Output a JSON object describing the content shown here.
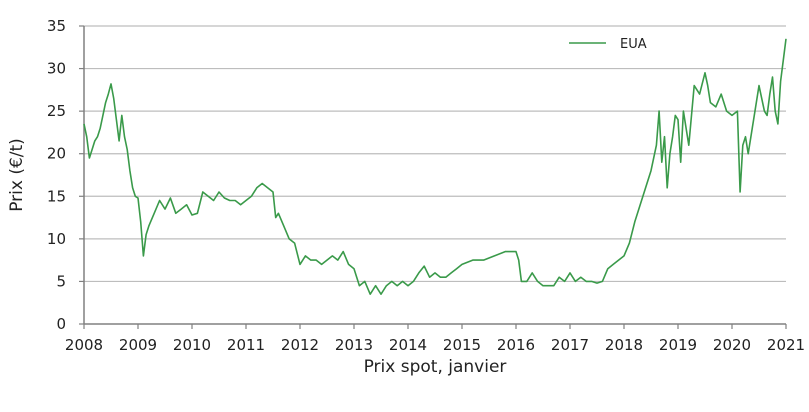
{
  "chart_data": {
    "type": "line",
    "title": "",
    "xlabel": "Prix spot, janvier",
    "ylabel": "Prix (€/t)",
    "ylim": [
      0,
      35
    ],
    "xlim": [
      2008,
      2021
    ],
    "yticks": [
      0,
      5,
      10,
      15,
      20,
      25,
      30,
      35
    ],
    "xticks": [
      2008,
      2009,
      2010,
      2011,
      2012,
      2013,
      2014,
      2015,
      2016,
      2017,
      2018,
      2019,
      2020,
      2021
    ],
    "grid": "horizontal",
    "legend_position": "top-right",
    "series": [
      {
        "name": "EUA",
        "color": "#3a9a4a",
        "x": [
          2008.0,
          2008.05,
          2008.1,
          2008.15,
          2008.2,
          2008.25,
          2008.3,
          2008.35,
          2008.4,
          2008.45,
          2008.5,
          2008.55,
          2008.6,
          2008.65,
          2008.7,
          2008.75,
          2008.8,
          2008.85,
          2008.9,
          2008.95,
          2009.0,
          2009.05,
          2009.1,
          2009.15,
          2009.2,
          2009.3,
          2009.4,
          2009.5,
          2009.6,
          2009.7,
          2009.8,
          2009.9,
          2010.0,
          2010.1,
          2010.2,
          2010.3,
          2010.4,
          2010.5,
          2010.6,
          2010.7,
          2010.8,
          2010.9,
          2011.0,
          2011.1,
          2011.2,
          2011.3,
          2011.4,
          2011.5,
          2011.55,
          2011.6,
          2011.7,
          2011.8,
          2011.9,
          2012.0,
          2012.1,
          2012.2,
          2012.3,
          2012.4,
          2012.5,
          2012.6,
          2012.7,
          2012.8,
          2012.9,
          2013.0,
          2013.1,
          2013.2,
          2013.3,
          2013.4,
          2013.5,
          2013.6,
          2013.7,
          2013.8,
          2013.9,
          2014.0,
          2014.1,
          2014.2,
          2014.3,
          2014.4,
          2014.5,
          2014.6,
          2014.7,
          2014.8,
          2014.9,
          2015.0,
          2015.2,
          2015.4,
          2015.6,
          2015.8,
          2016.0,
          2016.05,
          2016.1,
          2016.2,
          2016.3,
          2016.4,
          2016.5,
          2016.6,
          2016.7,
          2016.8,
          2016.9,
          2017.0,
          2017.1,
          2017.2,
          2017.3,
          2017.4,
          2017.5,
          2017.6,
          2017.7,
          2017.8,
          2017.9,
          2018.0,
          2018.1,
          2018.2,
          2018.3,
          2018.4,
          2018.5,
          2018.6,
          2018.65,
          2018.7,
          2018.75,
          2018.8,
          2018.85,
          2018.9,
          2018.95,
          2019.0,
          2019.05,
          2019.1,
          2019.15,
          2019.2,
          2019.3,
          2019.4,
          2019.5,
          2019.55,
          2019.6,
          2019.7,
          2019.8,
          2019.9,
          2020.0,
          2020.1,
          2020.15,
          2020.2,
          2020.25,
          2020.3,
          2020.4,
          2020.5,
          2020.6,
          2020.65,
          2020.7,
          2020.75,
          2020.8,
          2020.85,
          2020.9,
          2020.95,
          2021.0
        ],
        "values": [
          23.5,
          22.0,
          19.5,
          20.5,
          21.5,
          22.0,
          23.0,
          24.5,
          26.0,
          27.0,
          28.2,
          26.5,
          24.0,
          21.5,
          24.5,
          22.0,
          20.5,
          18.0,
          16.0,
          15.0,
          14.8,
          12.0,
          8.0,
          10.5,
          11.5,
          13.0,
          14.5,
          13.5,
          14.8,
          13.0,
          13.5,
          14.0,
          12.8,
          13.0,
          15.5,
          15.0,
          14.5,
          15.5,
          14.8,
          14.5,
          14.5,
          14.0,
          14.5,
          15.0,
          16.0,
          16.5,
          16.0,
          15.5,
          12.5,
          13.0,
          11.5,
          10.0,
          9.5,
          7.0,
          8.0,
          7.5,
          7.5,
          7.0,
          7.5,
          8.0,
          7.5,
          8.5,
          7.0,
          6.5,
          4.5,
          5.0,
          3.5,
          4.5,
          3.5,
          4.5,
          5.0,
          4.5,
          5.0,
          4.5,
          5.0,
          6.0,
          6.8,
          5.5,
          6.0,
          5.5,
          5.5,
          6.0,
          6.5,
          7.0,
          7.5,
          7.5,
          8.0,
          8.5,
          8.5,
          7.5,
          5.0,
          5.0,
          6.0,
          5.0,
          4.5,
          4.5,
          4.5,
          5.5,
          5.0,
          6.0,
          5.0,
          5.5,
          5.0,
          5.0,
          4.8,
          5.0,
          6.5,
          7.0,
          7.5,
          8.0,
          9.5,
          12.0,
          14.0,
          16.0,
          18.0,
          21.0,
          25.0,
          19.0,
          22.0,
          16.0,
          20.0,
          22.0,
          24.5,
          24.0,
          19.0,
          25.0,
          23.0,
          21.0,
          28.0,
          27.0,
          29.5,
          28.0,
          26.0,
          25.5,
          27.0,
          25.0,
          24.5,
          25.0,
          15.5,
          21.0,
          22.0,
          20.0,
          24.0,
          28.0,
          25.0,
          24.5,
          27.0,
          29.0,
          25.0,
          23.5,
          28.5,
          31.0,
          33.5
        ]
      }
    ]
  },
  "legend": {
    "items": [
      {
        "label": "EUA",
        "color": "#3a9a4a"
      }
    ]
  },
  "axes": {
    "y_title": "Prix (€/t)",
    "x_title": "Prix spot, janvier",
    "y_tick_labels": [
      "0",
      "5",
      "10",
      "15",
      "20",
      "25",
      "30",
      "35"
    ],
    "x_tick_labels": [
      "2008",
      "2009",
      "2010",
      "2011",
      "2012",
      "2013",
      "2014",
      "2015",
      "2016",
      "2017",
      "2018",
      "2019",
      "2020",
      "2021"
    ]
  }
}
